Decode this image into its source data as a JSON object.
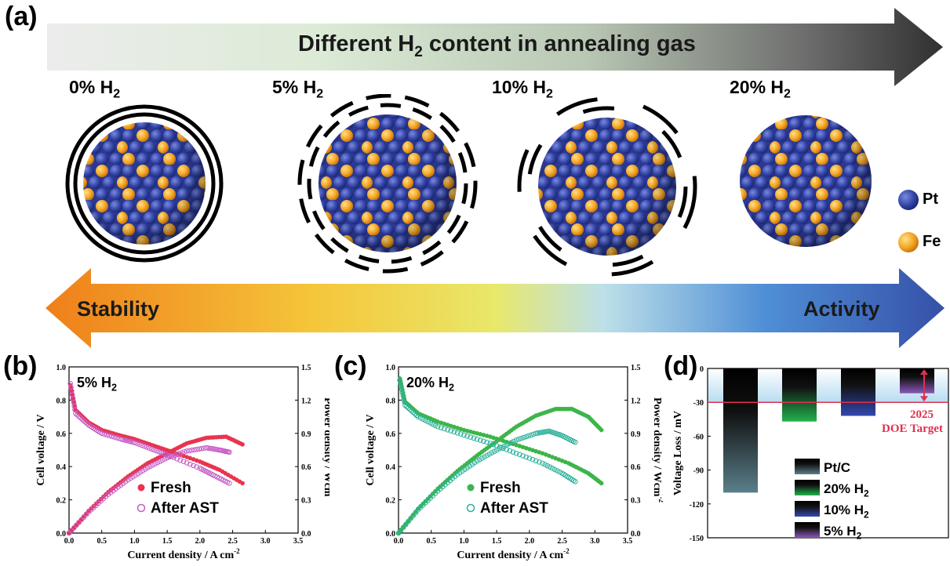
{
  "panel_a": {
    "label": "(a)",
    "top_banner": {
      "text_pre": "Different H",
      "sub": "2",
      "text_post": " content in annealing gas"
    },
    "particles": [
      {
        "pre": "0% H",
        "sub": "2",
        "shells": "continuous"
      },
      {
        "pre": "5% H",
        "sub": "2",
        "shells": "dashed"
      },
      {
        "pre": "10% H",
        "sub": "2",
        "shells": "broken"
      },
      {
        "pre": "20% H",
        "sub": "2",
        "shells": "none"
      }
    ],
    "atom_legend": [
      {
        "name": "Pt",
        "color": "#3a4aa8"
      },
      {
        "name": "Fe",
        "color": "#f5a623"
      }
    ],
    "bottom_arrow": {
      "left": "Stability",
      "right": "Activity"
    }
  },
  "chart_data": [
    {
      "panel": "(b)",
      "type": "scatter",
      "annotation_pre": "5% H",
      "annotation_sub": "2",
      "xlabel_pre": "Current density / A cm",
      "xlabel_sup": "-2",
      "ylabel": "Cell voltage / V",
      "y2label_pre": "Power density / Wcm",
      "y2label_sup": "-2",
      "xlim": [
        0.0,
        3.5
      ],
      "ylim": [
        0.0,
        1.0
      ],
      "y2lim": [
        0.0,
        1.5
      ],
      "xticks": [
        "0.0",
        "0.5",
        "1.0",
        "1.5",
        "2.0",
        "2.5",
        "3.0",
        "3.5"
      ],
      "yticks": [
        "0.0",
        "0.2",
        "0.4",
        "0.6",
        "0.8",
        "1.0"
      ],
      "y2ticks": [
        "0.0",
        "0.3",
        "0.6",
        "0.9",
        "1.2",
        "1.5"
      ],
      "series": [
        {
          "name": "Fresh",
          "color": "#e8344e",
          "marker": "filled",
          "voltage": [
            [
              0.02,
              0.89
            ],
            [
              0.1,
              0.74
            ],
            [
              0.3,
              0.665
            ],
            [
              0.5,
              0.62
            ],
            [
              0.8,
              0.585
            ],
            [
              1.0,
              0.565
            ],
            [
              1.3,
              0.525
            ],
            [
              1.6,
              0.485
            ],
            [
              2.0,
              0.43
            ],
            [
              2.3,
              0.38
            ],
            [
              2.65,
              0.3
            ]
          ],
          "power": [
            [
              0.0,
              0.0
            ],
            [
              0.3,
              0.2
            ],
            [
              0.6,
              0.37
            ],
            [
              0.9,
              0.51
            ],
            [
              1.2,
              0.63
            ],
            [
              1.5,
              0.72
            ],
            [
              1.8,
              0.81
            ],
            [
              2.1,
              0.86
            ],
            [
              2.4,
              0.87
            ],
            [
              2.65,
              0.8
            ]
          ]
        },
        {
          "name": "After AST",
          "color": "#c65bc6",
          "marker": "open",
          "voltage": [
            [
              0.02,
              0.9
            ],
            [
              0.1,
              0.72
            ],
            [
              0.3,
              0.65
            ],
            [
              0.5,
              0.6
            ],
            [
              0.8,
              0.565
            ],
            [
              1.0,
              0.545
            ],
            [
              1.3,
              0.5
            ],
            [
              1.6,
              0.455
            ],
            [
              2.0,
              0.39
            ],
            [
              2.2,
              0.35
            ],
            [
              2.45,
              0.3
            ]
          ],
          "power": [
            [
              0.0,
              0.0
            ],
            [
              0.3,
              0.19
            ],
            [
              0.6,
              0.35
            ],
            [
              0.9,
              0.48
            ],
            [
              1.2,
              0.59
            ],
            [
              1.5,
              0.68
            ],
            [
              1.8,
              0.74
            ],
            [
              2.1,
              0.77
            ],
            [
              2.3,
              0.75
            ],
            [
              2.45,
              0.73
            ]
          ]
        }
      ]
    },
    {
      "panel": "(c)",
      "type": "scatter",
      "annotation_pre": "20% H",
      "annotation_sub": "2",
      "xlabel_pre": "Current density / A cm",
      "xlabel_sup": "-2",
      "ylabel": "Cell voltage / V",
      "y2label_pre": "Power density / Wcm",
      "y2label_sup": "-2",
      "xlim": [
        0.0,
        3.5
      ],
      "ylim": [
        0.0,
        1.0
      ],
      "y2lim": [
        0.0,
        1.5
      ],
      "xticks": [
        "0.0",
        "0.5",
        "1.0",
        "1.5",
        "2.0",
        "2.5",
        "3.0",
        "3.5"
      ],
      "yticks": [
        "0.0",
        "0.2",
        "0.4",
        "0.6",
        "0.8",
        "1.0"
      ],
      "y2ticks": [
        "0.0",
        "0.3",
        "0.6",
        "0.9",
        "1.2",
        "1.5"
      ],
      "series": [
        {
          "name": "Fresh",
          "color": "#3cb54a",
          "marker": "filled",
          "voltage": [
            [
              0.02,
              0.93
            ],
            [
              0.1,
              0.79
            ],
            [
              0.3,
              0.72
            ],
            [
              0.6,
              0.67
            ],
            [
              1.0,
              0.62
            ],
            [
              1.4,
              0.58
            ],
            [
              1.8,
              0.53
            ],
            [
              2.2,
              0.48
            ],
            [
              2.6,
              0.42
            ],
            [
              2.9,
              0.36
            ],
            [
              3.1,
              0.3
            ]
          ],
          "power": [
            [
              0.0,
              0.0
            ],
            [
              0.3,
              0.22
            ],
            [
              0.6,
              0.4
            ],
            [
              0.9,
              0.56
            ],
            [
              1.2,
              0.7
            ],
            [
              1.5,
              0.83
            ],
            [
              1.8,
              0.96
            ],
            [
              2.1,
              1.06
            ],
            [
              2.4,
              1.12
            ],
            [
              2.65,
              1.12
            ],
            [
              2.9,
              1.05
            ],
            [
              3.1,
              0.93
            ]
          ]
        },
        {
          "name": "After AST",
          "color": "#2bb19a",
          "marker": "open",
          "voltage": [
            [
              0.02,
              0.92
            ],
            [
              0.1,
              0.77
            ],
            [
              0.3,
              0.7
            ],
            [
              0.6,
              0.64
            ],
            [
              1.0,
              0.59
            ],
            [
              1.4,
              0.54
            ],
            [
              1.8,
              0.48
            ],
            [
              2.2,
              0.42
            ],
            [
              2.5,
              0.36
            ],
            [
              2.7,
              0.31
            ]
          ],
          "power": [
            [
              0.0,
              0.0
            ],
            [
              0.3,
              0.21
            ],
            [
              0.6,
              0.38
            ],
            [
              0.9,
              0.53
            ],
            [
              1.2,
              0.65
            ],
            [
              1.5,
              0.75
            ],
            [
              1.8,
              0.84
            ],
            [
              2.1,
              0.9
            ],
            [
              2.3,
              0.92
            ],
            [
              2.5,
              0.88
            ],
            [
              2.7,
              0.82
            ]
          ]
        }
      ]
    },
    {
      "panel": "(d)",
      "type": "bar",
      "ylabel": "Voltage Loss / mV",
      "ylim": [
        -150,
        0
      ],
      "yticks": [
        "0",
        "-30",
        "-60",
        "-90",
        "-120",
        "-150"
      ],
      "target_value": -30,
      "target_label_line1": "2025",
      "target_label_line2": "DOE Target",
      "series": [
        {
          "name_pre": "Pt/C",
          "name_sub": "",
          "value": -110,
          "color": "#5a7f8a"
        },
        {
          "name_pre": "20% H",
          "name_sub": "2",
          "value": -47,
          "color": "#22b24c"
        },
        {
          "name_pre": "10% H",
          "name_sub": "2",
          "value": -42,
          "color": "#3348b0"
        },
        {
          "name_pre": "5% H",
          "name_sub": "2",
          "value": -22,
          "color": "#8a58b8"
        }
      ]
    }
  ]
}
